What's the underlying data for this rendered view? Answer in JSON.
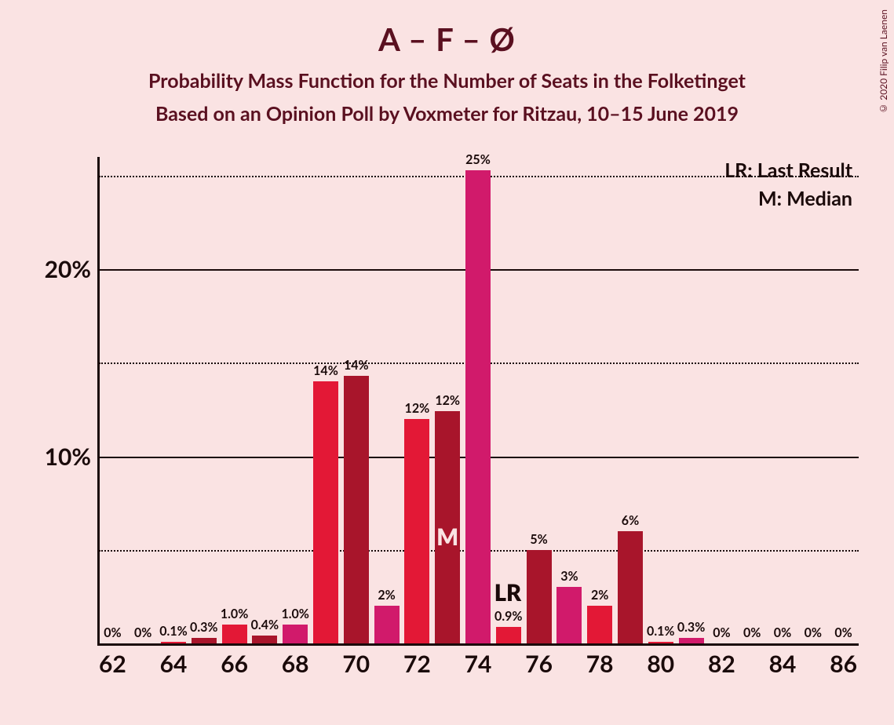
{
  "copyright": "© 2020 Filip van Laenen",
  "title": "A – F – Ø",
  "subtitle1": "Probability Mass Function for the Number of Seats in the Folketinget",
  "subtitle2": "Based on an Opinion Poll by Voxmeter for Ritzau, 10–15 June 2019",
  "legend": {
    "lr": "LR: Last Result",
    "m": "M: Median"
  },
  "chart": {
    "type": "bar",
    "background_color": "#fae3e3",
    "axis_color": "#1a0a0a",
    "text_color": "#5a1020",
    "title_fontsize": 40,
    "subtitle_fontsize": 25,
    "ylabel_fontsize": 30,
    "xlabel_fontsize": 30,
    "barlabel_fontsize": 16,
    "ylim": [
      0,
      26
    ],
    "y_solid_ticks": [
      10,
      20
    ],
    "y_dotted_ticks": [
      5,
      15,
      25
    ],
    "y_labeled_ticks": [
      10,
      20
    ],
    "bar_width_ratio": 0.82,
    "colors": {
      "light": "#e31836",
      "dark": "#a8152b",
      "magenta": "#d11a6b",
      "M_text": "#fae3e3",
      "LR_text": "#1a0a0a"
    },
    "x_categories": [
      62,
      63,
      64,
      65,
      66,
      67,
      68,
      69,
      70,
      71,
      72,
      73,
      74,
      75,
      76,
      77,
      78,
      79,
      80,
      81,
      82,
      83,
      84,
      85,
      86
    ],
    "x_tick_labels": [
      62,
      64,
      66,
      68,
      70,
      72,
      74,
      76,
      78,
      80,
      82,
      84,
      86
    ],
    "bars": [
      {
        "x": 62,
        "value": 0,
        "label": "0%",
        "shade": "light"
      },
      {
        "x": 63,
        "value": 0,
        "label": "0%",
        "shade": "dark"
      },
      {
        "x": 64,
        "value": 0.1,
        "label": "0.1%",
        "shade": "light"
      },
      {
        "x": 65,
        "value": 0.3,
        "label": "0.3%",
        "shade": "dark"
      },
      {
        "x": 66,
        "value": 1.0,
        "label": "1.0%",
        "shade": "light"
      },
      {
        "x": 67,
        "value": 0.4,
        "label": "0.4%",
        "shade": "dark"
      },
      {
        "x": 68,
        "value": 1.0,
        "label": "1.0%",
        "shade": "magenta"
      },
      {
        "x": 69,
        "value": 14,
        "label": "14%",
        "shade": "light"
      },
      {
        "x": 70,
        "value": 14.3,
        "label": "14%",
        "shade": "dark"
      },
      {
        "x": 71,
        "value": 2,
        "label": "2%",
        "shade": "magenta"
      },
      {
        "x": 72,
        "value": 12,
        "label": "12%",
        "shade": "light"
      },
      {
        "x": 73,
        "value": 12.4,
        "label": "12%",
        "shade": "dark",
        "marker": "M"
      },
      {
        "x": 74,
        "value": 25.3,
        "label": "25%",
        "shade": "magenta"
      },
      {
        "x": 75,
        "value": 0.9,
        "label": "0.9%",
        "shade": "light",
        "marker": "LR"
      },
      {
        "x": 76,
        "value": 5,
        "label": "5%",
        "shade": "dark"
      },
      {
        "x": 77,
        "value": 3,
        "label": "3%",
        "shade": "magenta"
      },
      {
        "x": 78,
        "value": 2,
        "label": "2%",
        "shade": "light"
      },
      {
        "x": 79,
        "value": 6,
        "label": "6%",
        "shade": "dark"
      },
      {
        "x": 80,
        "value": 0.1,
        "label": "0.1%",
        "shade": "light"
      },
      {
        "x": 81,
        "value": 0.3,
        "label": "0.3%",
        "shade": "magenta"
      },
      {
        "x": 82,
        "value": 0,
        "label": "0%",
        "shade": "light"
      },
      {
        "x": 83,
        "value": 0,
        "label": "0%",
        "shade": "dark"
      },
      {
        "x": 84,
        "value": 0,
        "label": "0%",
        "shade": "light"
      },
      {
        "x": 85,
        "value": 0,
        "label": "0%",
        "shade": "dark"
      },
      {
        "x": 86,
        "value": 0,
        "label": "0%",
        "shade": "light"
      }
    ]
  }
}
